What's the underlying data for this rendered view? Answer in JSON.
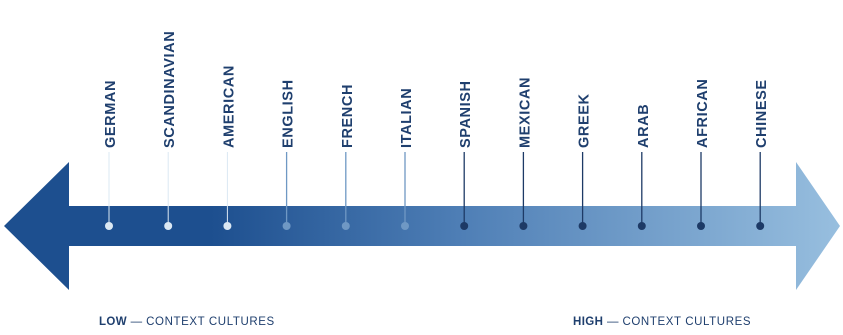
{
  "cultures": [
    {
      "name": "GERMAN",
      "tone": "light"
    },
    {
      "name": "SCANDINAVIAN",
      "tone": "light"
    },
    {
      "name": "AMERICAN",
      "tone": "light"
    },
    {
      "name": "ENGLISH",
      "tone": "mid"
    },
    {
      "name": "FRENCH",
      "tone": "mid"
    },
    {
      "name": "ITALIAN",
      "tone": "mid"
    },
    {
      "name": "SPANISH",
      "tone": "dark"
    },
    {
      "name": "MEXICAN",
      "tone": "dark"
    },
    {
      "name": "GREEK",
      "tone": "dark"
    },
    {
      "name": "ARAB",
      "tone": "dark"
    },
    {
      "name": "AFRICAN",
      "tone": "dark"
    },
    {
      "name": "CHINESE",
      "tone": "dark"
    }
  ],
  "captions": {
    "low_strong": "LOW",
    "low_rest": "CONTEXT CULTURES",
    "high_strong": "HIGH",
    "high_rest": "CONTEXT CULTURES",
    "dash": "—"
  },
  "colors": {
    "arrow_dark": "#1d4f8f",
    "arrow_light": "#98bfdf",
    "label": "#1f3f6e",
    "marker_light": "#dbe8f3",
    "marker_mid": "#6f98c4",
    "marker_dark": "#1d3a66"
  }
}
